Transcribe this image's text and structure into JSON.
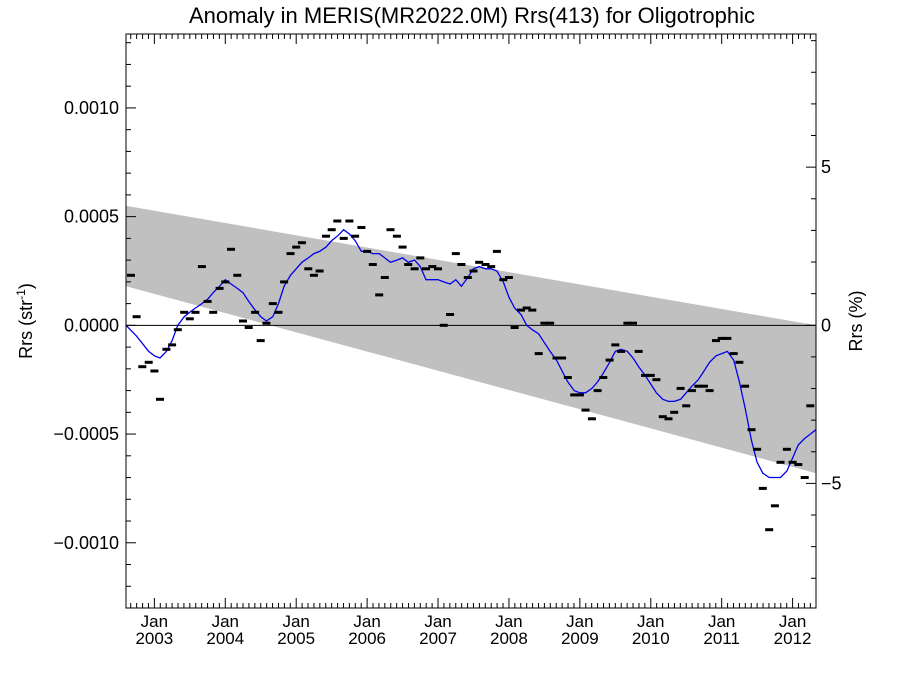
{
  "chart_data": {
    "type": "scatter",
    "title": "Anomaly in MERIS(MR2022.0M) Rrs(413) for Oligotrophic",
    "ylabel_left": {
      "base": "Rrs (str",
      "sup": "-1",
      "end": ")"
    },
    "ylabel_right": "Rrs (%)",
    "xlim": [
      2002.6,
      2012.33
    ],
    "ylim_left": [
      -0.0013,
      0.00134
    ],
    "ylim_right": [
      -8.94,
      9.21
    ],
    "left_ticks": [
      {
        "value": 0.001,
        "label": "0.0010"
      },
      {
        "value": 0.0005,
        "label": "0.0005"
      },
      {
        "value": 0.0,
        "label": "0.0000"
      },
      {
        "value": -0.0005,
        "label": "−0.0005"
      },
      {
        "value": -0.001,
        "label": "−0.0010"
      }
    ],
    "right_ticks": [
      {
        "value": 5,
        "label": "5"
      },
      {
        "value": 0,
        "label": "0"
      },
      {
        "value": -5,
        "label": "−5"
      }
    ],
    "x_ticks": [
      {
        "value": 2003.0,
        "month": "Jan",
        "year": "2003"
      },
      {
        "value": 2004.0,
        "month": "Jan",
        "year": "2004"
      },
      {
        "value": 2005.0,
        "month": "Jan",
        "year": "2005"
      },
      {
        "value": 2006.0,
        "month": "Jan",
        "year": "2006"
      },
      {
        "value": 2007.0,
        "month": "Jan",
        "year": "2007"
      },
      {
        "value": 2008.0,
        "month": "Jan",
        "year": "2008"
      },
      {
        "value": 2009.0,
        "month": "Jan",
        "year": "2009"
      },
      {
        "value": 2010.0,
        "month": "Jan",
        "year": "2010"
      },
      {
        "value": 2011.0,
        "month": "Jan",
        "year": "2011"
      },
      {
        "value": 2012.0,
        "month": "Jan",
        "year": "2012"
      }
    ],
    "grey_band": {
      "color": "#c0c0c0",
      "upper": [
        [
          2002.6,
          0.00055
        ],
        [
          2012.33,
          0.0
        ]
      ],
      "lower": [
        [
          2002.6,
          0.00018
        ],
        [
          2012.33,
          -0.00068
        ]
      ]
    },
    "zero_line": 0.0,
    "series": [
      {
        "kind": "points",
        "color": "#000000",
        "points": [
          [
            2002.67,
            0.00023
          ],
          [
            2002.75,
            4e-05
          ],
          [
            2002.83,
            -0.00019
          ],
          [
            2002.92,
            -0.00017
          ],
          [
            2003.0,
            -0.00021
          ],
          [
            2003.08,
            -0.00034
          ],
          [
            2003.17,
            -0.00011
          ],
          [
            2003.25,
            -9e-05
          ],
          [
            2003.33,
            -2e-05
          ],
          [
            2003.42,
            6e-05
          ],
          [
            2003.5,
            3e-05
          ],
          [
            2003.58,
            6e-05
          ],
          [
            2003.67,
            0.00027
          ],
          [
            2003.75,
            0.00011
          ],
          [
            2003.83,
            6e-05
          ],
          [
            2003.92,
            0.00017
          ],
          [
            2004.0,
            0.0002
          ],
          [
            2004.08,
            0.00035
          ],
          [
            2004.17,
            0.00023
          ],
          [
            2004.25,
            2e-05
          ],
          [
            2004.33,
            -1e-05
          ],
          [
            2004.42,
            6e-05
          ],
          [
            2004.5,
            -7e-05
          ],
          [
            2004.58,
            1e-05
          ],
          [
            2004.67,
            0.0001
          ],
          [
            2004.75,
            6e-05
          ],
          [
            2004.83,
            0.0002
          ],
          [
            2004.92,
            0.00033
          ],
          [
            2005.0,
            0.00036
          ],
          [
            2005.08,
            0.00038
          ],
          [
            2005.17,
            0.00026
          ],
          [
            2005.25,
            0.00023
          ],
          [
            2005.33,
            0.00025
          ],
          [
            2005.42,
            0.00041
          ],
          [
            2005.5,
            0.00044
          ],
          [
            2005.58,
            0.00048
          ],
          [
            2005.67,
            0.0004
          ],
          [
            2005.75,
            0.00048
          ],
          [
            2005.83,
            0.00041
          ],
          [
            2005.92,
            0.00045
          ],
          [
            2006.0,
            0.00034
          ],
          [
            2006.08,
            0.00028
          ],
          [
            2006.17,
            0.00014
          ],
          [
            2006.25,
            0.00022
          ],
          [
            2006.33,
            0.00044
          ],
          [
            2006.42,
            0.00041
          ],
          [
            2006.5,
            0.00036
          ],
          [
            2006.58,
            0.00028
          ],
          [
            2006.67,
            0.00026
          ],
          [
            2006.75,
            0.00031
          ],
          [
            2006.83,
            0.00026
          ],
          [
            2006.92,
            0.00027
          ],
          [
            2007.0,
            0.00026
          ],
          [
            2007.08,
            0.0
          ],
          [
            2007.17,
            5e-05
          ],
          [
            2007.25,
            0.00033
          ],
          [
            2007.33,
            0.00028
          ],
          [
            2007.42,
            0.00022
          ],
          [
            2007.5,
            0.00025
          ],
          [
            2007.58,
            0.00029
          ],
          [
            2007.67,
            0.00028
          ],
          [
            2007.75,
            0.00027
          ],
          [
            2007.83,
            0.00034
          ],
          [
            2007.92,
            0.00021
          ],
          [
            2008.0,
            0.00022
          ],
          [
            2008.08,
            -1e-05
          ],
          [
            2008.17,
            7e-05
          ],
          [
            2008.25,
            8e-05
          ],
          [
            2008.33,
            7e-05
          ],
          [
            2008.42,
            -0.00013
          ],
          [
            2008.5,
            1e-05
          ],
          [
            2008.58,
            1e-05
          ],
          [
            2008.67,
            -0.00015
          ],
          [
            2008.75,
            -0.00015
          ],
          [
            2008.83,
            -0.00024
          ],
          [
            2008.92,
            -0.00032
          ],
          [
            2009.0,
            -0.00032
          ],
          [
            2009.08,
            -0.00039
          ],
          [
            2009.17,
            -0.00043
          ],
          [
            2009.25,
            -0.0003
          ],
          [
            2009.33,
            -0.00024
          ],
          [
            2009.42,
            -0.00016
          ],
          [
            2009.5,
            -9e-05
          ],
          [
            2009.58,
            -0.00012
          ],
          [
            2009.67,
            1e-05
          ],
          [
            2009.75,
            1e-05
          ],
          [
            2009.83,
            -0.00012
          ],
          [
            2009.92,
            -0.00023
          ],
          [
            2010.0,
            -0.00023
          ],
          [
            2010.08,
            -0.00025
          ],
          [
            2010.17,
            -0.00042
          ],
          [
            2010.25,
            -0.00043
          ],
          [
            2010.33,
            -0.0004
          ],
          [
            2010.42,
            -0.00029
          ],
          [
            2010.5,
            -0.00037
          ],
          [
            2010.58,
            -0.0003
          ],
          [
            2010.67,
            -0.00028
          ],
          [
            2010.75,
            -0.00028
          ],
          [
            2010.83,
            -0.0003
          ],
          [
            2010.92,
            -7e-05
          ],
          [
            2011.0,
            -6e-05
          ],
          [
            2011.08,
            -6e-05
          ],
          [
            2011.17,
            -0.00013
          ],
          [
            2011.25,
            -0.00017
          ],
          [
            2011.33,
            -0.00028
          ],
          [
            2011.42,
            -0.00048
          ],
          [
            2011.5,
            -0.00057
          ],
          [
            2011.58,
            -0.00075
          ],
          [
            2011.67,
            -0.00094
          ],
          [
            2011.75,
            -0.00083
          ],
          [
            2011.83,
            -0.00063
          ],
          [
            2011.92,
            -0.00057
          ],
          [
            2012.0,
            -0.00063
          ],
          [
            2012.08,
            -0.00064
          ],
          [
            2012.17,
            -0.0007
          ],
          [
            2012.25,
            -0.00037
          ]
        ]
      },
      {
        "kind": "smoothed_line",
        "color": "#0000ee",
        "points": [
          [
            2002.6,
            0.0
          ],
          [
            2002.75,
            -5e-05
          ],
          [
            2002.92,
            -0.00012
          ],
          [
            2003.0,
            -0.00014
          ],
          [
            2003.08,
            -0.00015
          ],
          [
            2003.17,
            -0.00012
          ],
          [
            2003.25,
            -7e-05
          ],
          [
            2003.33,
            0.0
          ],
          [
            2003.42,
            4e-05
          ],
          [
            2003.5,
            6e-05
          ],
          [
            2003.58,
            8e-05
          ],
          [
            2003.67,
            0.0001
          ],
          [
            2003.75,
            0.00012
          ],
          [
            2003.83,
            0.00015
          ],
          [
            2003.92,
            0.00018
          ],
          [
            2004.0,
            0.00021
          ],
          [
            2004.08,
            0.00019
          ],
          [
            2004.17,
            0.00017
          ],
          [
            2004.25,
            0.00015
          ],
          [
            2004.33,
            0.00011
          ],
          [
            2004.42,
            7e-05
          ],
          [
            2004.5,
            4e-05
          ],
          [
            2004.58,
            2e-05
          ],
          [
            2004.67,
            4e-05
          ],
          [
            2004.75,
            0.0001
          ],
          [
            2004.83,
            0.00018
          ],
          [
            2004.92,
            0.00023
          ],
          [
            2005.0,
            0.00026
          ],
          [
            2005.08,
            0.00029
          ],
          [
            2005.17,
            0.00031
          ],
          [
            2005.25,
            0.00033
          ],
          [
            2005.33,
            0.00034
          ],
          [
            2005.42,
            0.00036
          ],
          [
            2005.5,
            0.00039
          ],
          [
            2005.58,
            0.00041
          ],
          [
            2005.67,
            0.00044
          ],
          [
            2005.75,
            0.00042
          ],
          [
            2005.83,
            0.00039
          ],
          [
            2005.92,
            0.00034
          ],
          [
            2006.0,
            0.00034
          ],
          [
            2006.08,
            0.00033
          ],
          [
            2006.17,
            0.00033
          ],
          [
            2006.25,
            0.00031
          ],
          [
            2006.33,
            0.00029
          ],
          [
            2006.42,
            0.0003
          ],
          [
            2006.5,
            0.00031
          ],
          [
            2006.58,
            0.00029
          ],
          [
            2006.67,
            0.0003
          ],
          [
            2006.75,
            0.00027
          ],
          [
            2006.83,
            0.00021
          ],
          [
            2006.92,
            0.00021
          ],
          [
            2007.0,
            0.00021
          ],
          [
            2007.08,
            0.0002
          ],
          [
            2007.17,
            0.00019
          ],
          [
            2007.25,
            0.00021
          ],
          [
            2007.33,
            0.00018
          ],
          [
            2007.42,
            0.00022
          ],
          [
            2007.5,
            0.00026
          ],
          [
            2007.58,
            0.00027
          ],
          [
            2007.67,
            0.00026
          ],
          [
            2007.75,
            0.00026
          ],
          [
            2007.83,
            0.00025
          ],
          [
            2007.92,
            0.0002
          ],
          [
            2008.0,
            0.00013
          ],
          [
            2008.08,
            8e-05
          ],
          [
            2008.17,
            5e-05
          ],
          [
            2008.25,
            0.0
          ],
          [
            2008.33,
            -2e-05
          ],
          [
            2008.42,
            -4e-05
          ],
          [
            2008.5,
            -8e-05
          ],
          [
            2008.58,
            -0.00012
          ],
          [
            2008.67,
            -0.00016
          ],
          [
            2008.75,
            -0.00021
          ],
          [
            2008.83,
            -0.00026
          ],
          [
            2008.92,
            -0.0003
          ],
          [
            2009.0,
            -0.00031
          ],
          [
            2009.08,
            -0.00031
          ],
          [
            2009.17,
            -0.00029
          ],
          [
            2009.25,
            -0.00026
          ],
          [
            2009.33,
            -0.00022
          ],
          [
            2009.42,
            -0.00017
          ],
          [
            2009.5,
            -0.00012
          ],
          [
            2009.58,
            -0.00011
          ],
          [
            2009.67,
            -0.00012
          ],
          [
            2009.75,
            -0.00015
          ],
          [
            2009.83,
            -0.00019
          ],
          [
            2009.92,
            -0.00023
          ],
          [
            2010.0,
            -0.00027
          ],
          [
            2010.08,
            -0.00031
          ],
          [
            2010.17,
            -0.00034
          ],
          [
            2010.25,
            -0.00035
          ],
          [
            2010.33,
            -0.00035
          ],
          [
            2010.42,
            -0.00034
          ],
          [
            2010.5,
            -0.00031
          ],
          [
            2010.58,
            -0.00028
          ],
          [
            2010.67,
            -0.00025
          ],
          [
            2010.75,
            -0.00021
          ],
          [
            2010.83,
            -0.00017
          ],
          [
            2010.92,
            -0.00014
          ],
          [
            2011.0,
            -0.00013
          ],
          [
            2011.08,
            -0.00012
          ],
          [
            2011.17,
            -0.00016
          ],
          [
            2011.25,
            -0.00026
          ],
          [
            2011.33,
            -0.00038
          ],
          [
            2011.42,
            -0.00053
          ],
          [
            2011.5,
            -0.00063
          ],
          [
            2011.58,
            -0.00068
          ],
          [
            2011.67,
            -0.0007
          ],
          [
            2011.75,
            -0.0007
          ],
          [
            2011.83,
            -0.0007
          ],
          [
            2011.92,
            -0.00067
          ],
          [
            2012.0,
            -0.00061
          ],
          [
            2012.08,
            -0.00055
          ],
          [
            2012.17,
            -0.00052
          ],
          [
            2012.25,
            -0.0005
          ],
          [
            2012.33,
            -0.00048
          ]
        ]
      }
    ]
  }
}
